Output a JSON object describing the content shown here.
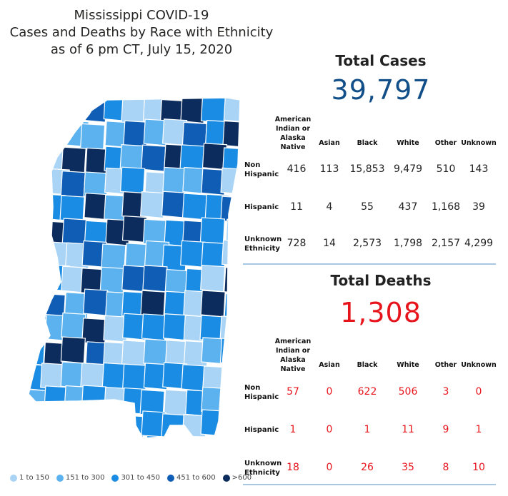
{
  "title_lines": [
    "Mississippi COVID-19",
    "Cases and Deaths by Race with Ethnicity",
    "as of 6 pm CT, July 15, 2020"
  ],
  "legend": [
    {
      "label": "1 to 150",
      "color": "#a9d4f6"
    },
    {
      "label": "151 to 300",
      "color": "#5cb2ee"
    },
    {
      "label": "301 to 450",
      "color": "#1a8ce3"
    },
    {
      "label": "451 to 600",
      "color": "#0f5db4"
    },
    {
      "label": ">600",
      "color": "#0b2c5c"
    }
  ],
  "cases": {
    "heading": "Total Cases",
    "total": "39,797",
    "total_color": "#124f88",
    "columns": [
      "American Indian or Alaska Native",
      "Asian",
      "Black",
      "White",
      "Other",
      "Unknown"
    ],
    "rows": [
      {
        "label": "Non Hispanic",
        "values": [
          "416",
          "113",
          "15,853",
          "9,479",
          "510",
          "143"
        ]
      },
      {
        "label": "Hispanic",
        "values": [
          "11",
          "4",
          "55",
          "437",
          "1,168",
          "39"
        ]
      },
      {
        "label": "Unknown Ethnicity",
        "values": [
          "728",
          "14",
          "2,573",
          "1,798",
          "2,157",
          "4,299"
        ]
      }
    ]
  },
  "deaths": {
    "heading": "Total Deaths",
    "total": "1,308",
    "total_color": "#e8141c",
    "columns": [
      "American Indian or Alaska Native",
      "Asian",
      "Black",
      "White",
      "Other",
      "Unknown"
    ],
    "rows": [
      {
        "label": "Non Hispanic",
        "values": [
          "57",
          "0",
          "622",
          "506",
          "3",
          "0"
        ]
      },
      {
        "label": "Hispanic",
        "values": [
          "1",
          "0",
          "1",
          "11",
          "9",
          "1"
        ]
      },
      {
        "label": "Unknown Ethnicity",
        "values": [
          "18",
          "0",
          "26",
          "35",
          "8",
          "10"
        ]
      }
    ]
  },
  "chart_data": [
    {
      "type": "table",
      "title": "Total Cases",
      "total": 39797,
      "columns": [
        "American Indian or Alaska Native",
        "Asian",
        "Black",
        "White",
        "Other",
        "Unknown"
      ],
      "rows": [
        {
          "label": "Non Hispanic",
          "values": [
            416,
            113,
            15853,
            9479,
            510,
            143
          ]
        },
        {
          "label": "Hispanic",
          "values": [
            11,
            4,
            55,
            437,
            1168,
            39
          ]
        },
        {
          "label": "Unknown Ethnicity",
          "values": [
            728,
            14,
            2573,
            1798,
            2157,
            4299
          ]
        }
      ]
    },
    {
      "type": "table",
      "title": "Total Deaths",
      "total": 1308,
      "columns": [
        "American Indian or Alaska Native",
        "Asian",
        "Black",
        "White",
        "Other",
        "Unknown"
      ],
      "rows": [
        {
          "label": "Non Hispanic",
          "values": [
            57,
            0,
            622,
            506,
            3,
            0
          ]
        },
        {
          "label": "Hispanic",
          "values": [
            1,
            0,
            1,
            11,
            9,
            1
          ]
        },
        {
          "label": "Unknown Ethnicity",
          "values": [
            18,
            0,
            26,
            35,
            8,
            10
          ]
        }
      ]
    }
  ]
}
